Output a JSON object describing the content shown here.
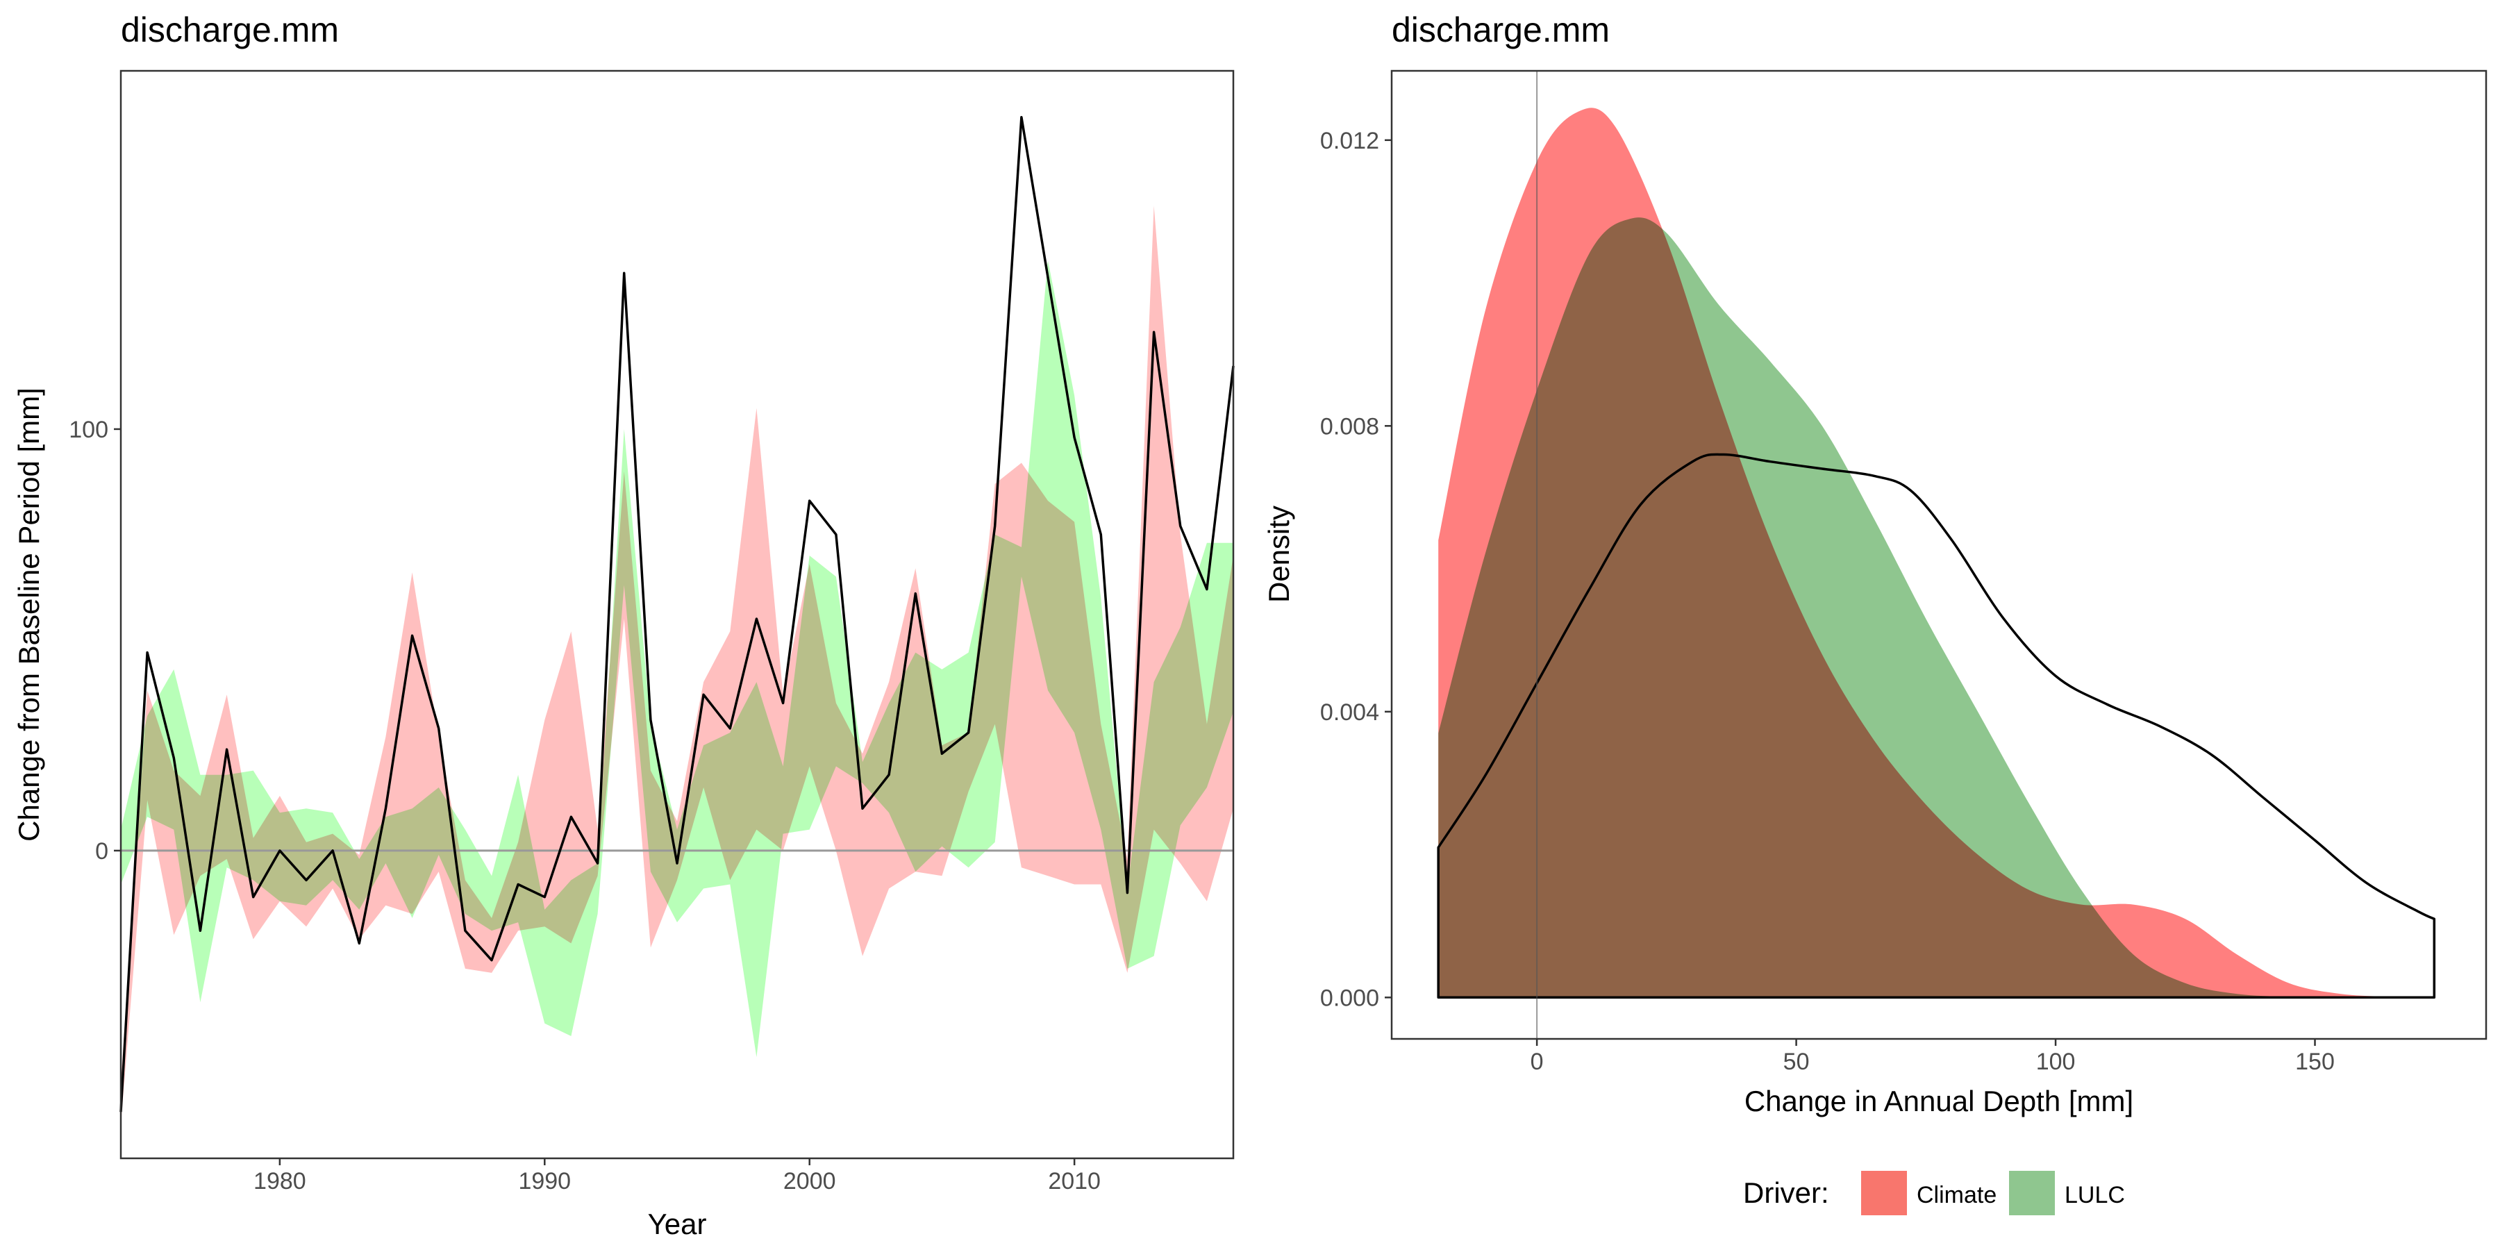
{
  "colors": {
    "climate": "#ff7f7f",
    "lulc": "#8fc68f",
    "climate_band": "#ffbfbf",
    "lulc_band": "#b8ffb8",
    "overlap_band": "#c2c08d",
    "overlap_density": "#8e8153",
    "line": "#000000",
    "zero_line": "#999999"
  },
  "legend": {
    "title": "Driver:",
    "entries": [
      {
        "label": "Climate",
        "color": "#f8766d"
      },
      {
        "label": "LULC",
        "color": "#8fc68f"
      }
    ]
  },
  "chart_data": [
    {
      "type": "line",
      "title": "discharge.mm",
      "xlabel": "Year",
      "ylabel": "Change from Baseline Period [mm]",
      "xlim": [
        1974,
        2016
      ],
      "ylim": [
        -73,
        185
      ],
      "x_ticks": [
        1980,
        1990,
        2000,
        2010
      ],
      "y_ticks": [
        0,
        100
      ],
      "grid": false,
      "reference_line": 0,
      "x": [
        1974,
        1975,
        1976,
        1977,
        1978,
        1979,
        1980,
        1981,
        1982,
        1983,
        1984,
        1985,
        1986,
        1987,
        1988,
        1989,
        1990,
        1991,
        1992,
        1993,
        1994,
        1995,
        1996,
        1997,
        1998,
        1999,
        2000,
        2001,
        2002,
        2003,
        2004,
        2005,
        2006,
        2007,
        2008,
        2009,
        2010,
        2011,
        2012,
        2013,
        2014,
        2015,
        2016
      ],
      "series": [
        {
          "values": [
            -62,
            47,
            22,
            -19,
            24,
            -11,
            0,
            -7,
            0,
            -22,
            10,
            51,
            29,
            -19,
            -26,
            -8,
            -11,
            8,
            -3,
            137,
            31,
            -3,
            37,
            29,
            55,
            35,
            83,
            75,
            10,
            18,
            61,
            23,
            28,
            77,
            174,
            136,
            98,
            75,
            -10,
            123,
            77,
            62,
            115
          ]
        }
      ],
      "bands": [
        {
          "name": "Climate",
          "upper": [
            -55,
            38,
            19,
            13,
            37,
            3,
            13,
            2,
            4,
            -1,
            27,
            66,
            27,
            -7,
            -16,
            2,
            31,
            52,
            5,
            90,
            19,
            7,
            40,
            52,
            105,
            37,
            68,
            35,
            23,
            40,
            67,
            25,
            28,
            87,
            92,
            83,
            78,
            30,
            -2,
            153,
            75,
            30,
            70
          ],
          "lower": [
            -65,
            12,
            -20,
            -6,
            -2,
            -21,
            -12,
            -18,
            -9,
            -21,
            -13,
            -15,
            -5,
            -28,
            -29,
            -19,
            -18,
            -22,
            -6,
            55,
            -23,
            -7,
            15,
            -7,
            5,
            0,
            20,
            0,
            -25,
            -9,
            -5,
            -6,
            14,
            30,
            -4,
            -6,
            -8,
            -8,
            -29,
            5,
            -3,
            -12,
            10
          ]
        },
        {
          "name": "LULC",
          "upper": [
            5,
            32,
            43,
            18,
            18,
            19,
            9,
            10,
            9,
            -2,
            8,
            10,
            15,
            5,
            -6,
            18,
            -14,
            -7,
            -3,
            100,
            30,
            5,
            25,
            28,
            40,
            20,
            70,
            65,
            21,
            35,
            47,
            43,
            47,
            75,
            72,
            140,
            108,
            60,
            -9,
            40,
            53,
            73,
            73
          ],
          "lower": [
            -8,
            8,
            5,
            -36,
            -4,
            -7,
            -12,
            -13,
            -7,
            -14,
            -3,
            -16,
            -1,
            -15,
            -19,
            -17,
            -41,
            -44,
            -15,
            63,
            -5,
            -17,
            -9,
            -8,
            -49,
            4,
            5,
            20,
            16,
            9,
            -5,
            1,
            -4,
            2,
            65,
            38,
            28,
            5,
            -28,
            -25,
            6,
            15,
            33
          ]
        }
      ]
    },
    {
      "type": "area",
      "title": "discharge.mm",
      "xlabel": "Change in Annual Depth [mm]",
      "ylabel": "Density",
      "xlim": [
        -28,
        183
      ],
      "ylim": [
        -0.00058,
        0.01297
      ],
      "x_ticks": [
        0,
        50,
        100,
        150
      ],
      "y_ticks": [
        0.0,
        0.004,
        0.008,
        0.012
      ],
      "y_tick_labels": [
        "0.000",
        "0.004",
        "0.008",
        "0.012"
      ],
      "grid": false,
      "reference_line": 0,
      "series": [
        {
          "name": "Climate",
          "x": [
            -19,
            -10,
            0,
            8,
            15,
            25,
            35,
            45,
            55,
            65,
            75,
            85,
            95,
            105,
            115,
            125,
            135,
            145,
            155,
            165,
            173
          ],
          "values": [
            0.0064,
            0.0096,
            0.0117,
            0.0124,
            0.0122,
            0.0106,
            0.0084,
            0.0064,
            0.0048,
            0.0036,
            0.0027,
            0.002,
            0.0015,
            0.0013,
            0.0013,
            0.0011,
            0.0006,
            0.0002,
            5e-05,
            1e-05,
            0
          ]
        },
        {
          "name": "LULC",
          "x": [
            -19,
            -10,
            0,
            10,
            18,
            25,
            35,
            45,
            55,
            65,
            75,
            85,
            95,
            105,
            115,
            125,
            135,
            145,
            155,
            165,
            173
          ],
          "values": [
            0.0037,
            0.0062,
            0.0085,
            0.0104,
            0.0109,
            0.0107,
            0.0097,
            0.0089,
            0.008,
            0.0067,
            0.0053,
            0.004,
            0.0027,
            0.0015,
            0.0006,
            0.0002,
            5e-05,
            1e-05,
            0,
            0,
            0
          ]
        },
        {
          "name": "",
          "x": [
            -19,
            -10,
            0,
            10,
            20,
            30,
            36,
            45,
            55,
            65,
            72,
            80,
            90,
            100,
            110,
            120,
            130,
            140,
            150,
            160,
            170,
            173
          ],
          "values": [
            0.0021,
            0.0031,
            0.0044,
            0.0057,
            0.0069,
            0.0075,
            0.0076,
            0.0075,
            0.0074,
            0.0073,
            0.0071,
            0.0064,
            0.0053,
            0.0045,
            0.0041,
            0.0038,
            0.0034,
            0.0028,
            0.0022,
            0.0016,
            0.0012,
            0.0011
          ]
        }
      ]
    }
  ]
}
